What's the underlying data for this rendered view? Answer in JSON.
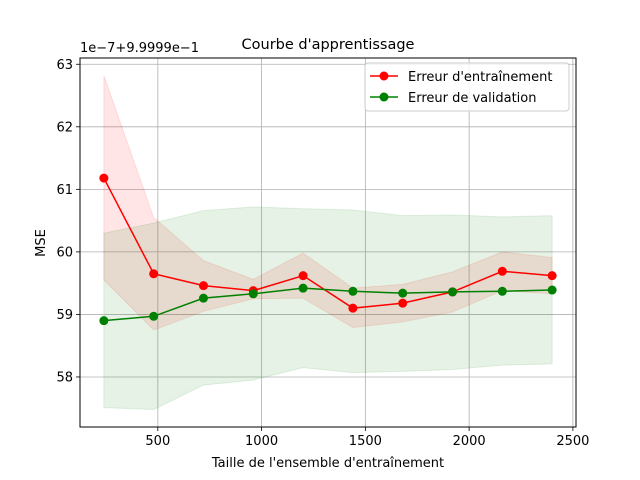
{
  "chart_data": {
    "type": "line",
    "title": "Courbe d'apprentissage",
    "xlabel": "Taille de l'ensemble d'entraînement",
    "ylabel": "MSE",
    "offset_text": "1e−7+9.9999e−1",
    "xlim": [
      125,
      2515
    ],
    "ylim": [
      57.2,
      63.1
    ],
    "xticks": [
      500,
      1000,
      1500,
      2000,
      2500
    ],
    "yticks": [
      58,
      59,
      60,
      61,
      62,
      63
    ],
    "grid": true,
    "legend_position": "top-right",
    "x": [
      240,
      480,
      720,
      960,
      1200,
      1440,
      1680,
      1920,
      2160,
      2400
    ],
    "series": [
      {
        "name": "Erreur d'entraînement",
        "color": "#ff0000",
        "values": [
          61.18,
          59.65,
          59.46,
          59.38,
          59.62,
          59.1,
          59.18,
          59.36,
          59.69,
          59.62
        ],
        "band_lower": [
          59.55,
          58.75,
          59.05,
          59.25,
          59.26,
          58.79,
          58.88,
          59.04,
          59.38,
          59.33
        ],
        "band_upper": [
          62.82,
          60.55,
          59.86,
          59.56,
          59.98,
          59.42,
          59.48,
          59.68,
          60.0,
          59.91
        ]
      },
      {
        "name": "Erreur de validation",
        "color": "#008000",
        "values": [
          58.9,
          58.97,
          59.26,
          59.33,
          59.42,
          59.37,
          59.34,
          59.36,
          59.37,
          59.39
        ],
        "band_lower": [
          57.51,
          57.48,
          57.87,
          57.95,
          58.15,
          58.07,
          58.09,
          58.12,
          58.19,
          58.21
        ],
        "band_upper": [
          60.3,
          60.46,
          60.66,
          60.72,
          60.69,
          60.67,
          60.58,
          60.59,
          60.56,
          60.58
        ]
      }
    ]
  }
}
